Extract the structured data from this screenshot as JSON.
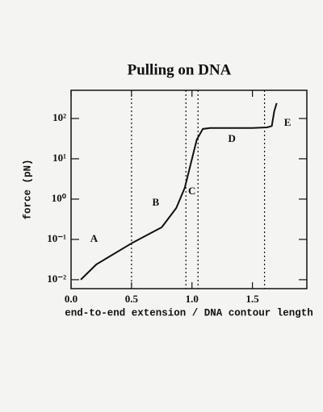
{
  "chart_data": {
    "type": "line",
    "title": "Pulling on DNA",
    "x_label": "end-to-end extension / DNA contour length",
    "y_label": "force (pN)",
    "log_y": true,
    "xlim": [
      0,
      1.95
    ],
    "ylim": [
      0.006,
      500
    ],
    "xticks": [
      {
        "value": 0,
        "label": "0.0"
      },
      0.5,
      {
        "value": 1,
        "label": "1.0"
      },
      1.5
    ],
    "yticks": [
      {
        "value": 0.01,
        "label": "10⁻²"
      },
      {
        "value": 0.1,
        "label": "10⁻¹"
      },
      {
        "value": 1,
        "label": "10⁰"
      },
      {
        "value": 10,
        "label": "10¹"
      },
      {
        "value": 100,
        "label": "10²"
      }
    ],
    "region_boundaries": [
      0.5,
      0.95,
      1.05,
      1.6
    ],
    "annotations": [
      {
        "text": "A",
        "x": 0.19,
        "y": 0.1
      },
      {
        "text": "B",
        "x": 0.7,
        "y": 0.8
      },
      {
        "text": "C",
        "x": 1.0,
        "y": 1.5
      },
      {
        "text": "D",
        "x": 1.33,
        "y": 30
      },
      {
        "text": "E",
        "x": 1.79,
        "y": 75
      }
    ],
    "series": [
      {
        "color": "#111111",
        "x": [
          0.08,
          0.21,
          0.5,
          0.75,
          0.87,
          0.94,
          0.99,
          1.04,
          1.09,
          1.15,
          1.3,
          1.5,
          1.62,
          1.66,
          1.68,
          1.7
        ],
        "values": [
          0.01,
          0.024,
          0.08,
          0.2,
          0.6,
          1.9,
          7.5,
          30,
          55,
          58,
          58,
          58,
          60,
          65,
          150,
          240
        ]
      }
    ]
  }
}
